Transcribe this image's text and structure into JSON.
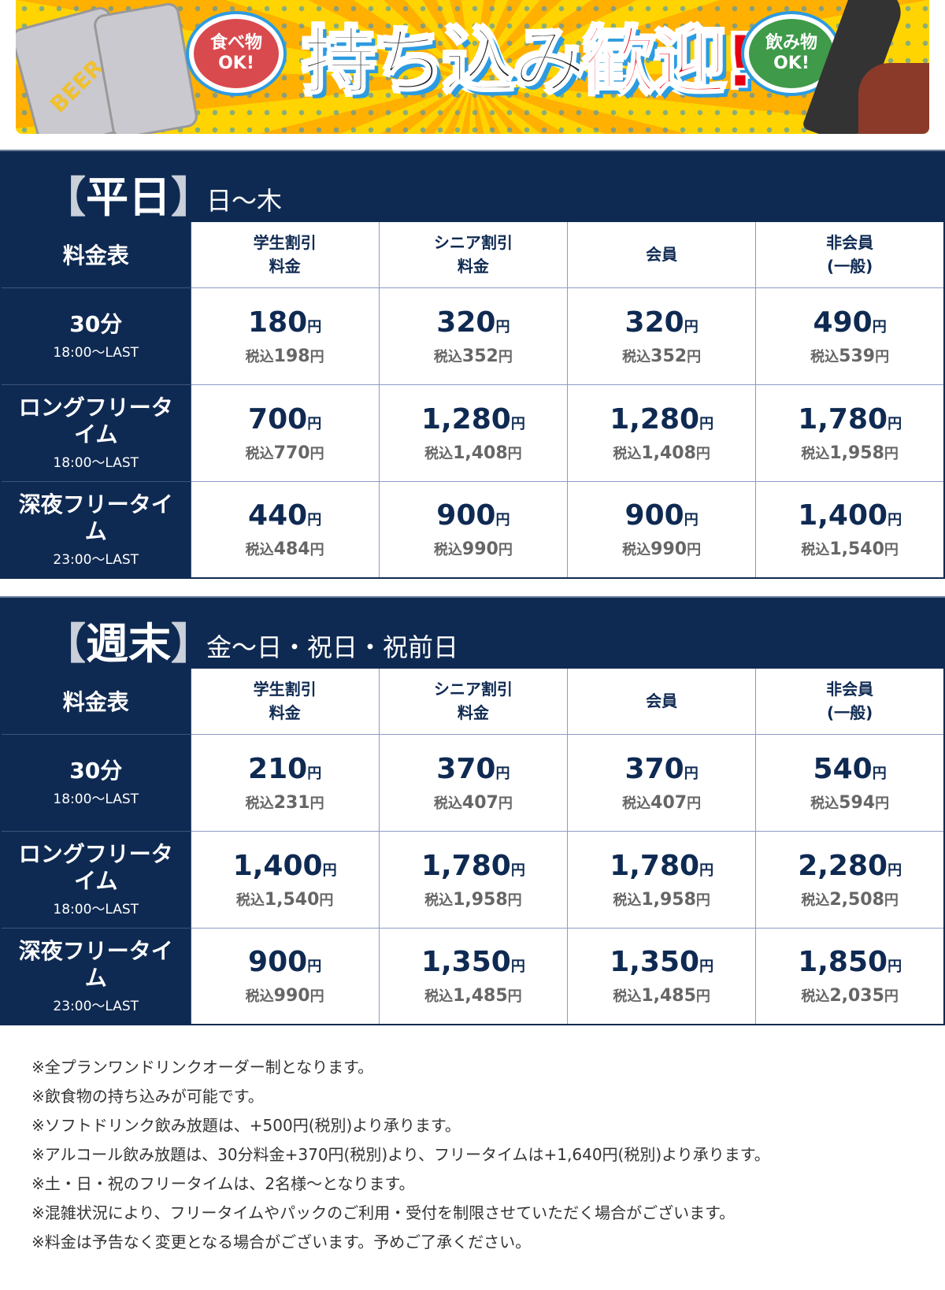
{
  "banner": {
    "title_black": "持ち込み",
    "title_red": "歓迎!",
    "food_bubble": "食べ物\nOK!",
    "drink_bubble": "飲み物\nOK!",
    "can_label": "BEER",
    "colors": {
      "yellow": "#ffd400",
      "red": "#e60012",
      "blue": "#2d9be0"
    }
  },
  "columns": [
    "学生割引\n料金",
    "シニア割引\n料金",
    "会員",
    "非会員\n(一般)"
  ],
  "corner_label": "料金表",
  "yen": "円",
  "tax_prefix": "税込",
  "sections": [
    {
      "title": "平日",
      "subtitle": "日〜木",
      "rows": [
        {
          "name": "30分",
          "time": "18:00〜LAST",
          "prices": [
            [
              "180",
              "198"
            ],
            [
              "320",
              "352"
            ],
            [
              "320",
              "352"
            ],
            [
              "490",
              "539"
            ]
          ]
        },
        {
          "name": "ロングフリータイム",
          "time": "18:00〜LAST",
          "prices": [
            [
              "700",
              "770"
            ],
            [
              "1,280",
              "1,408"
            ],
            [
              "1,280",
              "1,408"
            ],
            [
              "1,780",
              "1,958"
            ]
          ]
        },
        {
          "name": "深夜フリータイム",
          "time": "23:00〜LAST",
          "prices": [
            [
              "440",
              "484"
            ],
            [
              "900",
              "990"
            ],
            [
              "900",
              "990"
            ],
            [
              "1,400",
              "1,540"
            ]
          ]
        }
      ]
    },
    {
      "title": "週末",
      "subtitle": "金〜日・祝日・祝前日",
      "rows": [
        {
          "name": "30分",
          "time": "18:00〜LAST",
          "prices": [
            [
              "210",
              "231"
            ],
            [
              "370",
              "407"
            ],
            [
              "370",
              "407"
            ],
            [
              "540",
              "594"
            ]
          ]
        },
        {
          "name": "ロングフリータイム",
          "time": "18:00〜LAST",
          "prices": [
            [
              "1,400",
              "1,540"
            ],
            [
              "1,780",
              "1,958"
            ],
            [
              "1,780",
              "1,958"
            ],
            [
              "2,280",
              "2,508"
            ]
          ]
        },
        {
          "name": "深夜フリータイム",
          "time": "23:00〜LAST",
          "prices": [
            [
              "900",
              "990"
            ],
            [
              "1,350",
              "1,485"
            ],
            [
              "1,350",
              "1,485"
            ],
            [
              "1,850",
              "2,035"
            ]
          ]
        }
      ]
    }
  ],
  "notes": [
    "※全プランワンドリンクオーダー制となります。",
    "※飲食物の持ち込みが可能です。",
    "※ソフトドリンク飲み放題は、+500円(税別)より承ります。",
    "※アルコール飲み放題は、30分料金+370円(税別)より、フリータイムは+1,640円(税別)より承ります。",
    "※土・日・祝のフリータイムは、2名様〜となります。",
    "※混雑状況により、フリータイムやパックのご利用・受付を制限させていただく場合がございます。",
    "※料金は予告なく変更となる場合がございます。予めご了承ください。"
  ],
  "theme": {
    "navy": "#0f2a52"
  }
}
